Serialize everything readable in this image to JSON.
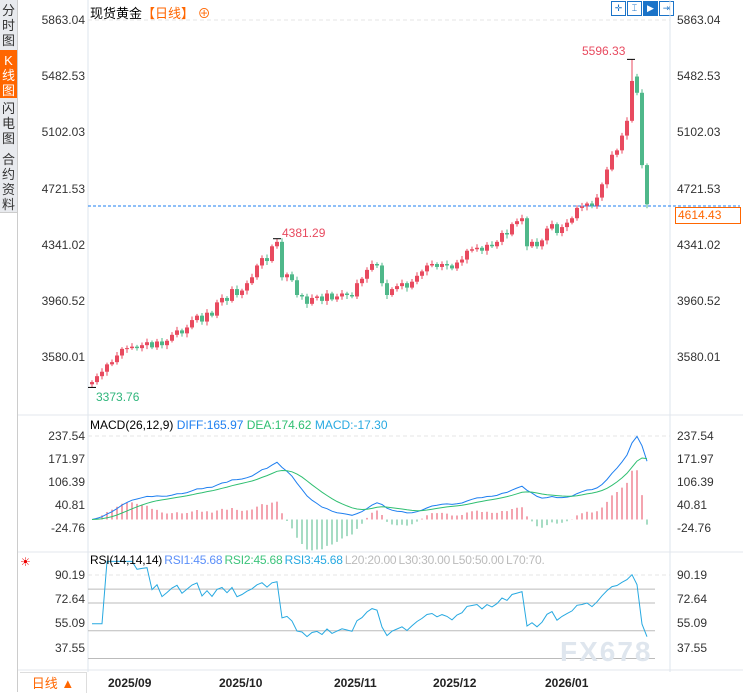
{
  "sidebar": {
    "tabs": [
      {
        "label": "分时图"
      },
      {
        "label": "K线图",
        "active": true
      },
      {
        "label": "闪电图"
      },
      {
        "label": "合约资料"
      }
    ]
  },
  "header": {
    "instrument": "现货黄金",
    "period": "【日线】",
    "add_icon": "circle-plus-icon"
  },
  "toolbar": [
    "crosshair-icon",
    "zoom-range-icon",
    "play-right-icon",
    "jump-end-icon"
  ],
  "period_selector": "日线 ▲",
  "watermark": "FX678",
  "colors": {
    "up": "#e84a5f",
    "down": "#4fb88a",
    "diff": "#1e7ff0",
    "dea": "#2fbf71",
    "rsi": "#27a9e1",
    "accent": "#ff6a00",
    "last_price_line": "#1e7ff0"
  },
  "chart_data": [
    {
      "type": "candlestick",
      "title": "现货黄金",
      "y_axis_ticks": [
        "5863.04",
        "5482.53",
        "5102.03",
        "4721.53",
        "4341.02",
        "3960.52",
        "3580.01"
      ],
      "ylim": [
        3373.76,
        5863.04
      ],
      "x_tick_labels": [
        "2025/09",
        "2025/10",
        "2025/11",
        "2025/12",
        "2026/01"
      ],
      "annotations": {
        "high": "5596.33",
        "mid_high": "4381.29",
        "low": "3373.76",
        "last": "4614.43"
      },
      "close": [
        3410,
        3450,
        3480,
        3530,
        3545,
        3590,
        3635,
        3640,
        3650,
        3640,
        3660,
        3680,
        3645,
        3685,
        3660,
        3690,
        3730,
        3760,
        3740,
        3780,
        3830,
        3860,
        3820,
        3880,
        3860,
        3950,
        3980,
        3960,
        4040,
        4000,
        4030,
        4080,
        4120,
        4200,
        4250,
        4230,
        4330,
        4360,
        4120,
        4140,
        4100,
        4000,
        3990,
        3940,
        3980,
        3990,
        3960,
        4010,
        3970,
        3990,
        4010,
        4000,
        3990,
        4080,
        4110,
        4170,
        4210,
        4200,
        4080,
        4000,
        4040,
        4060,
        4080,
        4050,
        4090,
        4130,
        4160,
        4200,
        4210,
        4190,
        4210,
        4200,
        4180,
        4220,
        4240,
        4300,
        4310,
        4320,
        4300,
        4340,
        4330,
        4360,
        4420,
        4410,
        4480,
        4500,
        4520,
        4330,
        4360,
        4330,
        4370,
        4450,
        4480,
        4420,
        4460,
        4490,
        4520,
        4590,
        4600,
        4620,
        4600,
        4660,
        4750,
        4850,
        4950,
        4980,
        5080,
        5180,
        5450,
        5370,
        4880,
        4614.43
      ]
    },
    {
      "type": "line",
      "title": "MACD(26,12,9)",
      "legend": {
        "diff": "DIFF:165.97",
        "dea": "DEA:174.62",
        "macd": "MACD:-17.30"
      },
      "y_axis_ticks": [
        "237.54",
        "171.97",
        "106.39",
        "40.81",
        "-24.76"
      ]
    },
    {
      "type": "line",
      "title": "RSI(14,14,14)",
      "legend": {
        "rsi1": "RSI1:45.68",
        "rsi2": "RSI2:45.68",
        "rsi3": "RSI3:45.68",
        "l20": "L20:20.00",
        "l30": "L30:30.00",
        "l50": "L50:50.00",
        "l70": "L70:70."
      },
      "y_axis_ticks": [
        "90.19",
        "72.64",
        "55.09",
        "37.55"
      ],
      "levels": [
        80,
        70,
        50,
        30
      ]
    }
  ]
}
